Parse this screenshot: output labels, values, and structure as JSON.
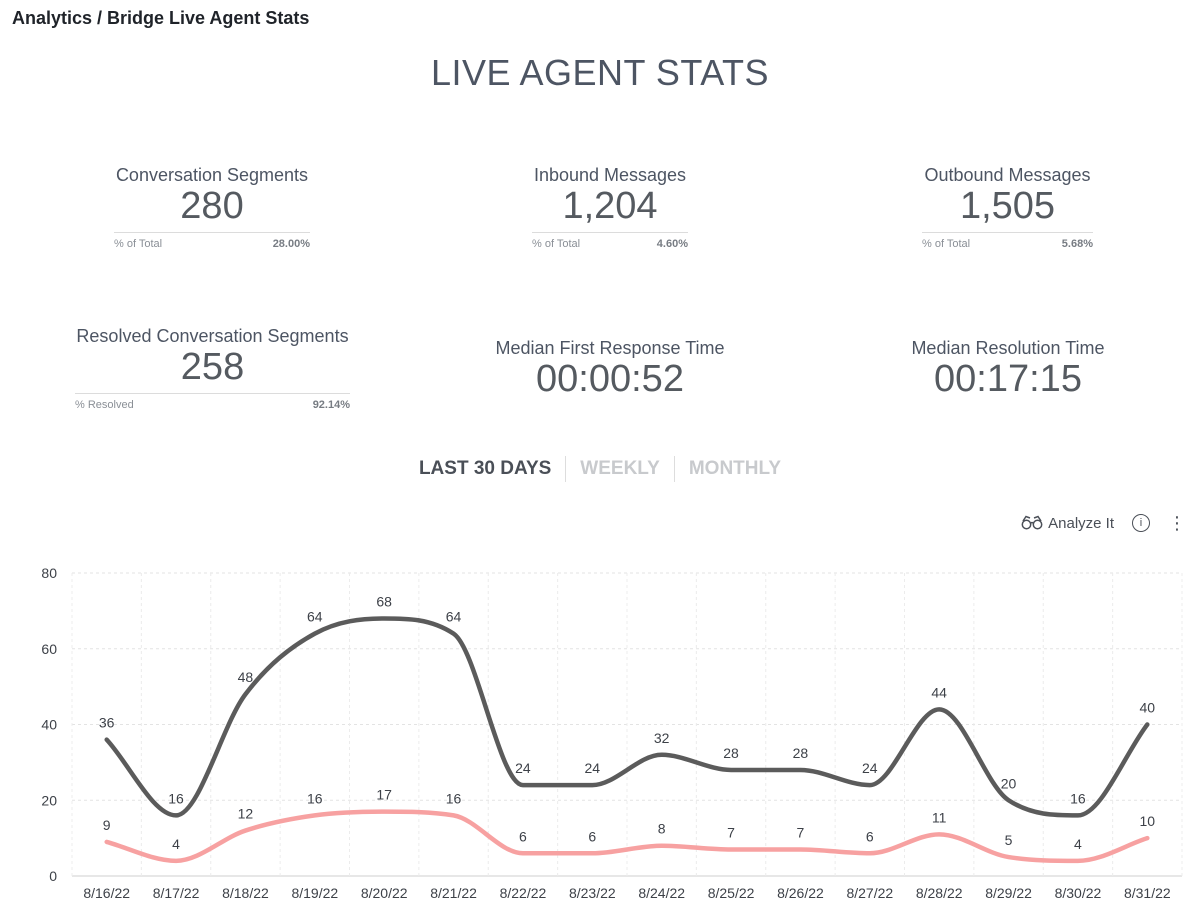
{
  "breadcrumb": "Analytics / Bridge Live Agent Stats",
  "page_title": "LIVE AGENT STATS",
  "metrics": {
    "conv_segments": {
      "label": "Conversation Segments",
      "value": "280",
      "sub_label": "% of Total",
      "sub_value": "28.00%"
    },
    "inbound": {
      "label": "Inbound Messages",
      "value": "1,204",
      "sub_label": "% of Total",
      "sub_value": "4.60%"
    },
    "outbound": {
      "label": "Outbound Messages",
      "value": "1,505",
      "sub_label": "% of Total",
      "sub_value": "5.68%"
    },
    "resolved": {
      "label": "Resolved Conversation Segments",
      "value": "258",
      "sub_label": "% Resolved",
      "sub_value": "92.14%"
    },
    "first_response": {
      "label": "Median First Response Time",
      "value": "00:00:52"
    },
    "resolution": {
      "label": "Median Resolution Time",
      "value": "00:17:15"
    }
  },
  "tabs": {
    "last30": "LAST 30 DAYS",
    "weekly": "WEEKLY",
    "monthly": "MONTHLY",
    "active": "LAST 30 DAYS"
  },
  "toolbar": {
    "analyze_label": "Analyze It",
    "analyze_icon": "binoculars-icon",
    "info_icon": "info-icon",
    "info_glyph": "i",
    "menu_icon": "more-vertical-icon",
    "menu_glyph": "⋮"
  },
  "chart_data": {
    "type": "line",
    "categories": [
      "8/16/22",
      "8/17/22",
      "8/18/22",
      "8/19/22",
      "8/20/22",
      "8/21/22",
      "8/22/22",
      "8/23/22",
      "8/24/22",
      "8/25/22",
      "8/26/22",
      "8/27/22",
      "8/28/22",
      "8/29/22",
      "8/30/22",
      "8/31/22"
    ],
    "ylim": [
      0,
      80
    ],
    "yticks": [
      0,
      20,
      40,
      60,
      80
    ],
    "grid": true,
    "series": [
      {
        "color": "#5b5b5b",
        "values": [
          36,
          16,
          48,
          64,
          68,
          64,
          24,
          24,
          32,
          28,
          28,
          24,
          44,
          20,
          16,
          40
        ]
      },
      {
        "color": "#f7a1a1",
        "values": [
          9,
          4,
          12,
          16,
          17,
          16,
          6,
          6,
          8,
          7,
          7,
          6,
          11,
          5,
          4,
          10
        ]
      }
    ]
  }
}
